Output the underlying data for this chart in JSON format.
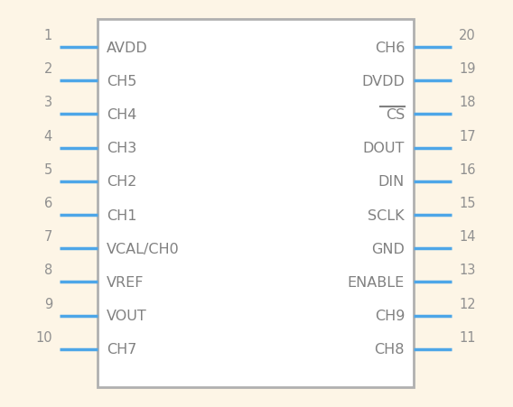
{
  "bg_color": "#fdf5e6",
  "body_edge_color": "#b0b0b0",
  "body_fill": "#ffffff",
  "pin_color": "#4da6e8",
  "text_color": "#808080",
  "num_color": "#909090",
  "left_pins": [
    {
      "num": 1,
      "name": "AVDD",
      "has_line": true
    },
    {
      "num": 2,
      "name": "CH5",
      "has_line": true
    },
    {
      "num": 3,
      "name": "CH4",
      "has_line": true
    },
    {
      "num": 4,
      "name": "CH3",
      "has_line": true
    },
    {
      "num": 5,
      "name": "CH2",
      "has_line": true
    },
    {
      "num": 6,
      "name": "CH1",
      "has_line": true
    },
    {
      "num": 7,
      "name": "VCAL/CH0",
      "has_line": true
    },
    {
      "num": 8,
      "name": "VREF",
      "has_line": true
    },
    {
      "num": 9,
      "name": "VOUT",
      "has_line": true
    },
    {
      "num": 10,
      "name": "CH7",
      "has_line": true
    }
  ],
  "right_pins": [
    {
      "num": 20,
      "name": "CH6",
      "has_line": true,
      "overline": false
    },
    {
      "num": 19,
      "name": "DVDD",
      "has_line": true,
      "overline": false
    },
    {
      "num": 18,
      "name": "CS",
      "has_line": true,
      "overline": true
    },
    {
      "num": 17,
      "name": "DOUT",
      "has_line": true,
      "overline": false
    },
    {
      "num": 16,
      "name": "DIN",
      "has_line": true,
      "overline": false
    },
    {
      "num": 15,
      "name": "SCLK",
      "has_line": true,
      "overline": false
    },
    {
      "num": 14,
      "name": "GND",
      "has_line": true,
      "overline": false
    },
    {
      "num": 13,
      "name": "ENABLE",
      "has_line": true,
      "overline": false
    },
    {
      "num": 12,
      "name": "CH9",
      "has_line": true,
      "overline": false
    },
    {
      "num": 11,
      "name": "CH8",
      "has_line": true,
      "overline": false
    }
  ],
  "fig_w": 5.68,
  "fig_h": 4.52,
  "dpi": 100
}
